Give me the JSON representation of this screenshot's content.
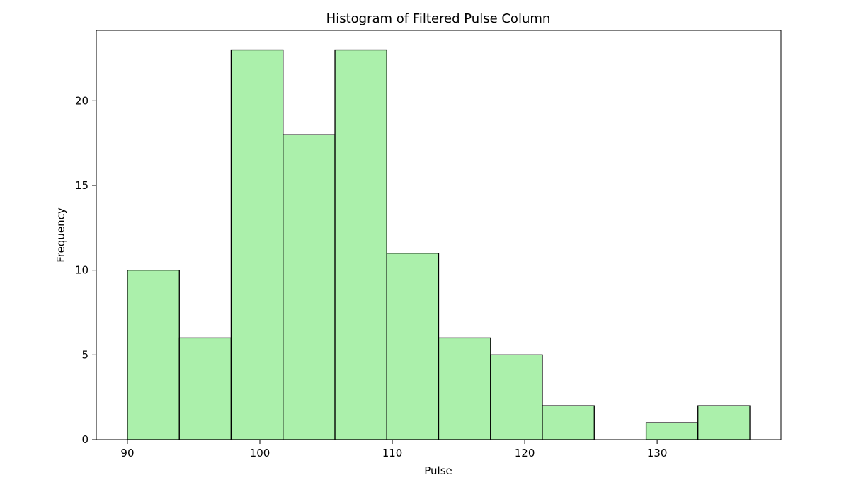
{
  "chart_data": {
    "type": "bar",
    "title": "Histogram of Filtered Pulse Column",
    "xlabel": "Pulse",
    "ylabel": "Frequency",
    "bin_edges": [
      90,
      93.92,
      97.83,
      101.75,
      105.67,
      109.58,
      113.5,
      117.42,
      121.33,
      125.25,
      129.17,
      133.08,
      137
    ],
    "values": [
      10,
      6,
      23,
      18,
      23,
      11,
      6,
      5,
      2,
      0,
      1,
      2
    ],
    "xlim": [
      87.65,
      139.35
    ],
    "ylim": [
      0,
      24.15
    ],
    "x_ticks": [
      "90",
      "100",
      "110",
      "120",
      "130"
    ],
    "y_ticks": [
      "0",
      "5",
      "10",
      "15",
      "20"
    ],
    "x_tick_values": [
      90,
      100,
      110,
      120,
      130
    ],
    "y_tick_values": [
      0,
      5,
      10,
      15,
      20
    ],
    "grid": false,
    "bar_color": "#abf0ab",
    "edge_color": "#000000"
  }
}
